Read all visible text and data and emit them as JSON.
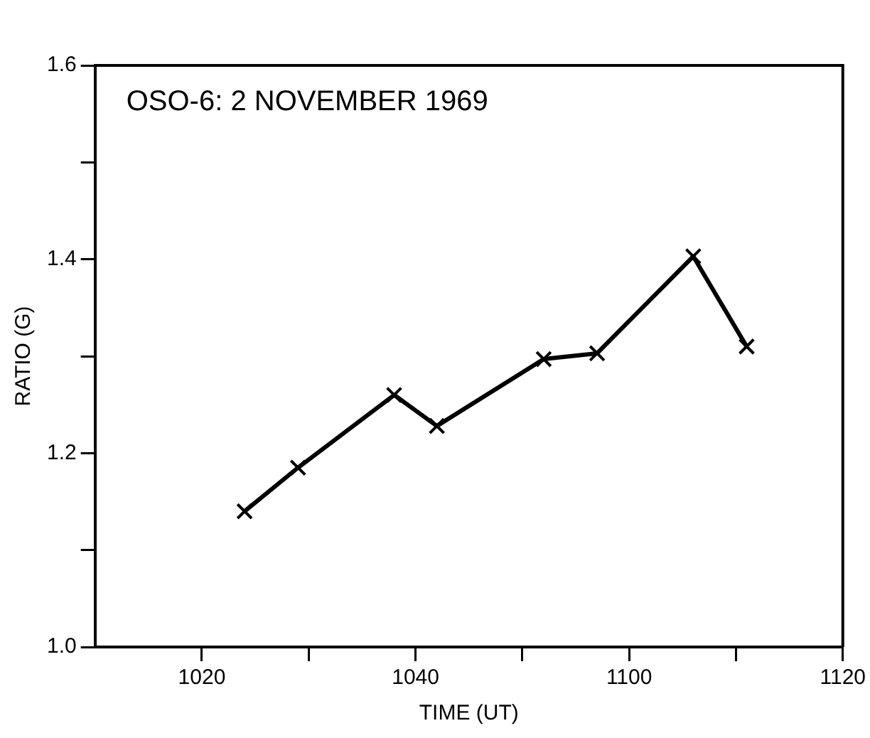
{
  "chart_data": {
    "type": "line",
    "title": "OSO-6: 2 NOVEMBER 1969",
    "xlabel": "TIME (UT)",
    "ylabel": "RATIO (G)",
    "x": [
      "1969-11-02T10:24",
      "1969-11-02T10:29",
      "1969-11-02T10:38",
      "1969-11-02T10:42",
      "1969-11-02T10:52",
      "1969-11-02T10:57",
      "1969-11-02T11:06",
      "1969-11-02T11:11"
    ],
    "series": [
      {
        "color": "#000000",
        "values": [
          1.14,
          1.185,
          1.26,
          1.228,
          1.297,
          1.303,
          1.403,
          1.31
        ]
      }
    ],
    "xlim": [
      "1969-11-02T10:10",
      "1969-11-02T11:20"
    ],
    "xticks": [
      {
        "value": "1969-11-02T10:20",
        "label": "1020"
      },
      {
        "value": "1969-11-02T10:30",
        "label": null
      },
      {
        "value": "1969-11-02T10:40",
        "label": "1040"
      },
      {
        "value": "1969-11-02T10:50",
        "label": null
      },
      {
        "value": "1969-11-02T11:00",
        "label": "1100"
      },
      {
        "value": "1969-11-02T11:10",
        "label": null
      },
      {
        "value": "1969-11-02T11:20",
        "label": "1120"
      }
    ],
    "ylim": [
      1.0,
      1.6
    ],
    "yticks": [
      {
        "value": 1.0,
        "label": "1.0"
      },
      {
        "value": 1.1,
        "label": null
      },
      {
        "value": 1.2,
        "label": "1.2"
      },
      {
        "value": 1.3,
        "label": null
      },
      {
        "value": 1.4,
        "label": "1.4"
      },
      {
        "value": 1.5,
        "label": null
      },
      {
        "value": 1.6,
        "label": "1.6"
      }
    ],
    "marker": "cross",
    "line_style": "solid"
  }
}
